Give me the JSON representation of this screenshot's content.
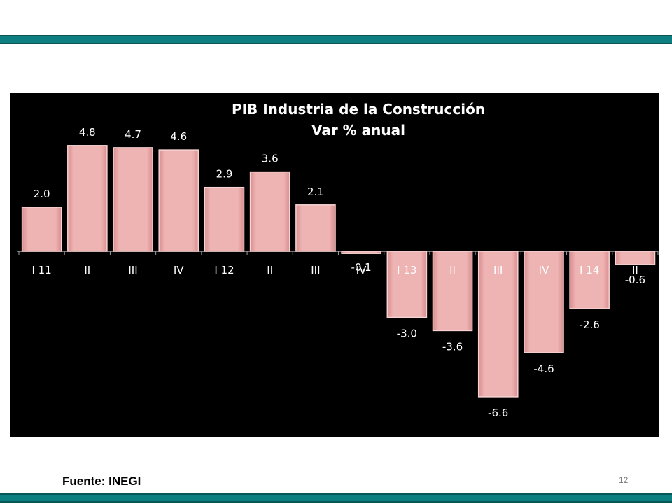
{
  "source": "Fuente: INEGI",
  "page_number": "12",
  "colors": {
    "band": "#0e7f80",
    "bar_fill": "#e8a3a3",
    "bar_edge": "#f6d2d2",
    "panel": "#000000",
    "text": "#ffffff"
  },
  "chart_data": {
    "type": "bar",
    "title": "PIB Industria de la Construcción",
    "subtitle": "Var % anual",
    "categories": [
      "I 11",
      "II",
      "III",
      "IV",
      "I 12",
      "II",
      "III",
      "IV",
      "I 13",
      "II",
      "III",
      "IV",
      "I 14",
      "II"
    ],
    "values": [
      2.0,
      4.8,
      4.7,
      4.6,
      2.9,
      3.6,
      2.1,
      -0.1,
      -3.0,
      -3.6,
      -6.6,
      -4.6,
      -2.6,
      -0.6
    ],
    "value_labels": [
      "2.0",
      "4.8",
      "4.7",
      "4.6",
      "2.9",
      "3.6",
      "2.1",
      "-0.1",
      "-3.0",
      "-3.6",
      "-6.6",
      "-4.6",
      "-2.6",
      "-0.6"
    ],
    "ylim": [
      -6.6,
      4.8
    ],
    "grid": false,
    "legend": "none"
  }
}
